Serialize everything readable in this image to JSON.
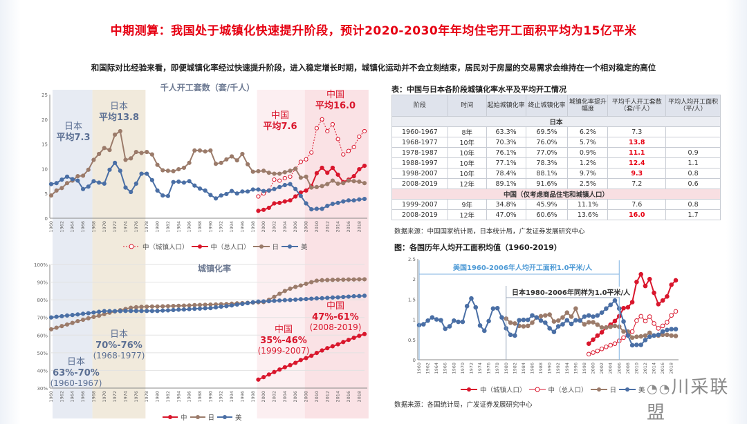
{
  "header": {
    "title": "中期测算：我国处于城镇化快速提升阶段，预计2020-2030年年均住宅开工面积平均为15亿平米",
    "subtitle": "和国际对比经验来看，即便城镇化率经过快速提升阶段，进入稳定增长时期，城镇化运动并不会立刻结束，居民对于房屋的交易需求会维持在一个相对稳定的高位"
  },
  "colors": {
    "china": "#d9162c",
    "japan": "#9b7b6a",
    "us": "#4a6fa5",
    "band_jp1": "#e3e7f1",
    "band_jp2": "#efe6d6",
    "band_cn1": "#fcecee",
    "band_cn2": "#f9dde1",
    "title_red": "#e60012"
  },
  "chart_data": [
    {
      "type": "line",
      "title": "千人开工套数（套/千人）",
      "ylim": [
        0,
        25
      ],
      "yticks": [
        0,
        5,
        10,
        15,
        20,
        25
      ],
      "x_range": [
        1960,
        2019
      ],
      "legend_placement": "bottom",
      "series": [
        {
          "name": "中（城镇人口）",
          "style": "dashed-open",
          "color": "#d9162c",
          "x_start": 1999,
          "values": [
            4.4,
            5.0,
            5.6,
            7.8,
            7.6,
            8.1,
            8.4,
            10.0,
            11.4,
            11.9,
            13.3,
            18.2,
            20.0,
            17.6,
            19.0,
            16.0,
            12.9,
            13.6,
            14.4,
            16.5,
            17.6
          ]
        },
        {
          "name": "中（总人口）",
          "style": "solid",
          "color": "#d9162c",
          "x_start": 1999,
          "values": [
            1.5,
            1.7,
            2.1,
            3.0,
            3.1,
            3.4,
            3.6,
            4.4,
            5.2,
            5.6,
            6.5,
            9.1,
            10.2,
            9.2,
            10.2,
            8.8,
            7.3,
            7.8,
            8.5,
            9.9,
            10.6
          ]
        },
        {
          "name": "日",
          "style": "solid",
          "color": "#9b7b6a",
          "x_start": 1960,
          "values": [
            4.6,
            5.6,
            6.1,
            7.1,
            7.6,
            8.5,
            8.6,
            9.8,
            11.8,
            13.0,
            14.2,
            13.8,
            16.9,
            17.6,
            11.8,
            12.1,
            13.4,
            13.2,
            13.4,
            12.9,
            10.8,
            9.7,
            9.6,
            9.5,
            9.9,
            10.2,
            11.2,
            13.7,
            13.7,
            13.5,
            13.7,
            11.0,
            11.2,
            11.9,
            12.5,
            11.7,
            13.0,
            10.9,
            9.4,
            9.5,
            9.6,
            9.2,
            9.0,
            9.0,
            9.3,
            9.6,
            10.0,
            8.2,
            8.4,
            6.2,
            6.3,
            6.5,
            6.9,
            7.6,
            7.0,
            7.1,
            7.6,
            7.5,
            7.4,
            7.1
          ]
        },
        {
          "name": "美",
          "style": "solid",
          "color": "#4a6fa5",
          "x_start": 1960,
          "values": [
            6.9,
            7.1,
            7.8,
            8.4,
            7.9,
            7.6,
            5.9,
            6.4,
            7.5,
            7.2,
            7.0,
            9.8,
            11.2,
            9.6,
            6.2,
            5.3,
            7.0,
            9.0,
            9.0,
            7.7,
            5.6,
            4.6,
            4.5,
            7.3,
            7.4,
            7.2,
            7.5,
            6.6,
            6.0,
            5.6,
            4.7,
            4.0,
            4.6,
            4.9,
            5.5,
            5.0,
            5.4,
            5.4,
            5.8,
            5.8,
            5.5,
            5.6,
            5.9,
            6.3,
            6.7,
            6.9,
            5.9,
            4.5,
            3.0,
            1.8,
            1.9,
            1.9,
            2.5,
            2.9,
            3.1,
            3.4,
            3.6,
            3.6,
            3.8,
            3.9
          ]
        }
      ],
      "annotations": [
        {
          "country": "日本",
          "text": "平均7.3"
        },
        {
          "country": "日本",
          "text": "平均13.8"
        },
        {
          "country": "中国",
          "text": "平均7.6"
        },
        {
          "country": "中国",
          "text": "平均16.0"
        }
      ]
    },
    {
      "type": "line",
      "title": "城镇化率",
      "ylim": [
        30,
        100
      ],
      "yticks": [
        "30%",
        "40%",
        "50%",
        "60%",
        "70%",
        "80%",
        "90%",
        "100%"
      ],
      "x_range": [
        1960,
        2019
      ],
      "legend_placement": "bottom",
      "series": [
        {
          "name": "中",
          "color": "#d9162c",
          "x_start": 1999,
          "values": [
            34.8,
            36.2,
            37.7,
            39.1,
            40.5,
            41.8,
            43.0,
            44.3,
            45.9,
            47.0,
            48.3,
            49.9,
            51.3,
            52.6,
            53.7,
            54.8,
            56.1,
            57.3,
            58.5,
            59.6,
            60.6
          ]
        },
        {
          "name": "日",
          "color": "#9b7b6a",
          "x_start": 1960,
          "values": [
            63.3,
            64.2,
            65.1,
            66.0,
            66.9,
            67.9,
            68.7,
            69.5,
            70.3,
            71.0,
            71.9,
            72.7,
            73.4,
            74.1,
            74.8,
            75.5,
            75.8,
            76.0,
            76.1,
            76.2,
            76.2,
            76.3,
            76.4,
            76.5,
            76.6,
            76.7,
            76.8,
            77.0,
            77.1,
            77.2,
            77.3,
            77.4,
            77.5,
            77.6,
            77.8,
            78.0,
            78.1,
            78.3,
            78.4,
            78.6,
            78.7,
            80.0,
            81.7,
            83.4,
            85.0,
            86.3,
            87.3,
            88.1,
            89.1,
            90.0,
            90.8,
            91.1,
            91.2,
            91.3,
            91.4,
            91.4,
            91.5,
            91.5,
            91.6,
            91.6
          ]
        },
        {
          "name": "美",
          "color": "#4a6fa5",
          "x_start": 1960,
          "values": [
            70.0,
            70.4,
            70.7,
            71.1,
            71.4,
            71.7,
            72.1,
            72.4,
            72.8,
            73.2,
            73.6,
            73.6,
            73.6,
            73.6,
            73.7,
            73.7,
            73.7,
            73.7,
            73.7,
            73.7,
            73.7,
            73.9,
            74.0,
            74.2,
            74.4,
            74.5,
            74.7,
            74.9,
            75.0,
            75.2,
            75.3,
            75.7,
            76.1,
            76.4,
            76.8,
            77.3,
            77.7,
            78.1,
            78.6,
            79.0,
            79.1,
            79.2,
            79.4,
            79.6,
            79.8,
            79.9,
            80.1,
            80.3,
            80.4,
            80.6,
            80.8,
            80.9,
            81.1,
            81.3,
            81.4,
            81.6,
            81.8,
            82.0,
            82.1,
            82.3
          ]
        }
      ],
      "annotations": [
        {
          "country": "日本",
          "range": "63%-70%",
          "period": "(1960-1967)"
        },
        {
          "country": "日本",
          "range": "70%-76%",
          "period": "(1968-1977)"
        },
        {
          "country": "中国",
          "range": "35%-46%",
          "period": "(1999-2007)"
        },
        {
          "country": "中国",
          "range": "47%-61%",
          "period": "(2008-2019)"
        }
      ]
    },
    {
      "type": "line",
      "title": "图：各国历年人均开工面积均值（1960-2019）",
      "ylim": [
        0,
        2.5
      ],
      "yticks": [
        "0",
        "0.5",
        "1",
        "1.5",
        "2",
        "2.5"
      ],
      "x_range": [
        1960,
        2019
      ],
      "legend_placement": "bottom",
      "series": [
        {
          "name": "中（城镇人口）",
          "style": "solid",
          "color": "#d9162c",
          "x_start": 1999,
          "values": [
            0.4,
            0.5,
            0.6,
            0.68,
            0.8,
            0.87,
            0.96,
            1.08,
            1.28,
            1.3,
            1.43,
            1.93,
            2.12,
            1.83,
            2.0,
            1.66,
            1.38,
            1.47,
            1.57,
            1.86,
            1.97
          ]
        },
        {
          "name": "中（总人口）",
          "style": "open",
          "color": "#d9162c",
          "x_start": 1999,
          "values": [
            0.14,
            0.18,
            0.22,
            0.27,
            0.32,
            0.36,
            0.4,
            0.47,
            0.55,
            0.62,
            0.7,
            0.97,
            1.08,
            0.96,
            1.07,
            0.9,
            0.78,
            0.84,
            0.93,
            1.1,
            1.2
          ]
        },
        {
          "name": "日",
          "style": "solid",
          "color": "#9b7b6a",
          "x_start": 1980,
          "values": [
            1.02,
            0.92,
            0.9,
            0.84,
            0.83,
            0.84,
            0.92,
            1.05,
            1.08,
            1.1,
            1.12,
            0.95,
            0.97,
            1.05,
            1.17,
            1.07,
            1.27,
            0.98,
            0.88,
            0.93,
            0.93,
            0.87,
            0.8,
            0.8,
            0.82,
            0.84,
            0.82,
            0.7,
            0.7,
            0.55,
            0.57,
            0.58,
            0.6,
            0.67,
            0.6,
            0.6,
            0.62,
            0.62,
            0.6,
            0.59
          ]
        },
        {
          "name": "美",
          "style": "solid",
          "color": "#4a6fa5",
          "x_start": 1960,
          "values": [
            0.86,
            0.88,
            0.97,
            1.05,
            1.0,
            0.98,
            0.77,
            0.83,
            0.97,
            0.94,
            0.94,
            1.33,
            1.52,
            1.3,
            0.85,
            0.72,
            0.96,
            1.27,
            1.28,
            1.05,
            0.78,
            0.62,
            0.6,
            0.98,
            0.99,
            0.99,
            1.1,
            1.05,
            0.97,
            0.92,
            0.78,
            0.69,
            0.83,
            0.88,
            0.98,
            0.89,
            0.98,
            0.97,
            1.07,
            1.1,
            1.07,
            1.1,
            1.17,
            1.27,
            1.36,
            1.47,
            1.27,
            0.95,
            0.6,
            0.36,
            0.37,
            0.37,
            0.49,
            0.57,
            0.6,
            0.62,
            0.7,
            0.74,
            0.76,
            0.76
          ]
        }
      ],
      "annotations": [
        "美国1960-2006年人均开工面积1.0平米/人",
        "日本1980-2006年同样为1.0平米/人"
      ],
      "source": "数据来源：各国统计局，广发证券发展研究中心"
    }
  ],
  "table": {
    "title": "表：中国与日本各阶段城镇化率水平及平均开工情况",
    "headers": [
      "阶段",
      "时间",
      "起始城镇化率",
      "终止城镇化率",
      "城镇化率提升幅度",
      "平均千人开工套数（套/千人）",
      "平均人均开工面积（平/人）"
    ],
    "groups": [
      {
        "label": "日本",
        "rows": [
          [
            "1960-1967",
            "8年",
            "63.3%",
            "69.5%",
            "6.2%",
            "7.3",
            ""
          ],
          [
            "1968-1977",
            "10年",
            "70.3%",
            "76.0%",
            "5.7%",
            "13.8",
            ""
          ],
          [
            "1978-1987",
            "10年",
            "76.1%",
            "77.0%",
            "0.9%",
            "11.1",
            "0.9"
          ],
          [
            "1988-1997",
            "10年",
            "77.1%",
            "78.3%",
            "1.2%",
            "12.4",
            "1.1"
          ],
          [
            "1998-2007",
            "10年",
            "78.4%",
            "88.1%",
            "9.7%",
            "9.3",
            "0.8"
          ],
          [
            "2008-2019",
            "12年",
            "89.1%",
            "91.6%",
            "2.5%",
            "7.2",
            "0.6"
          ]
        ]
      },
      {
        "label": "中国（仅考虑商品住宅和城镇人口）",
        "rows": [
          [
            "1999-2007",
            "9年",
            "34.8%",
            "45.9%",
            "11.1%",
            "7.6",
            "0.8"
          ],
          [
            "2008-2019",
            "12年",
            "47.0%",
            "60.6%",
            "13.6%",
            "16.0",
            "1.7"
          ]
        ]
      }
    ],
    "highlighted": [
      "13.8",
      "11.1",
      "12.4",
      "9.3",
      "16.0"
    ],
    "source": "数据来源：中国国家统计局，日本统计局，广发证券发展研究中心"
  },
  "watermark": "川采联盟"
}
